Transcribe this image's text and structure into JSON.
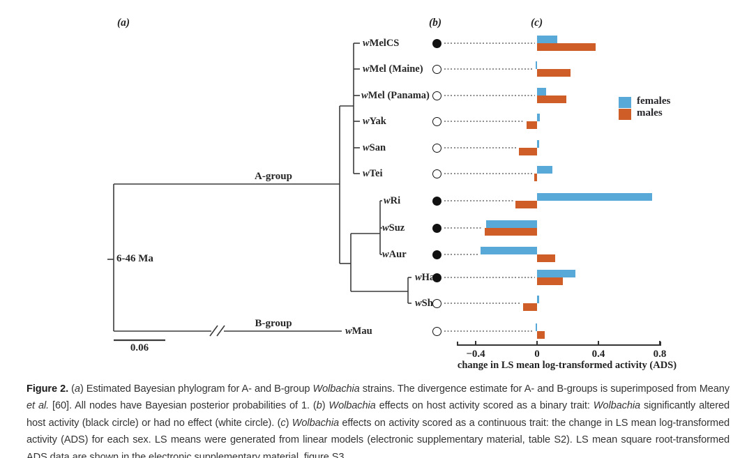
{
  "panels": {
    "a": "(a)",
    "b": "(b)",
    "c": "(c)"
  },
  "tree": {
    "a_group_label": "A-group",
    "b_group_label": "B-group",
    "divergence_label": "6-46 Ma",
    "scale_bar_label": "0.06"
  },
  "legend": {
    "females": "females",
    "males": "males"
  },
  "colors": {
    "female": "#58a9d8",
    "male": "#cf5d27",
    "tree_line": "#3a3a3a",
    "filled_circle": "#111111"
  },
  "axis": {
    "label": "change in LS mean log-transformed activity (ADS)",
    "ticks": [
      "−0.4",
      "0",
      "0.4",
      "0.8"
    ],
    "tick_values": [
      -0.4,
      0,
      0.4,
      0.8
    ]
  },
  "rows": [
    {
      "label": "wMelCS",
      "circle": "filled",
      "females": 0.13,
      "males": 0.38
    },
    {
      "label": "wMel (Maine)",
      "circle": "open",
      "females": -0.01,
      "males": 0.22
    },
    {
      "label": "wMel (Panama)",
      "circle": "open",
      "females": 0.06,
      "males": 0.19
    },
    {
      "label": "wYak",
      "circle": "open",
      "females": 0.02,
      "males": -0.07
    },
    {
      "label": "wSan",
      "circle": "open",
      "females": 0.01,
      "males": -0.12
    },
    {
      "label": "wTei",
      "circle": "open",
      "females": 0.1,
      "males": -0.02
    },
    {
      "label": "wRi",
      "circle": "filled",
      "females": 0.75,
      "males": -0.14
    },
    {
      "label": "wSuz",
      "circle": "filled",
      "females": -0.33,
      "males": -0.34
    },
    {
      "label": "wAur",
      "circle": "filled",
      "females": -0.37,
      "males": 0.12
    },
    {
      "label": "wHa",
      "circle": "filled",
      "females": 0.25,
      "males": 0.17
    },
    {
      "label": "wSh",
      "circle": "open",
      "females": 0.01,
      "males": -0.09
    },
    {
      "label": "wMau",
      "circle": "open",
      "females": -0.01,
      "males": 0.05
    }
  ],
  "chart_data": {
    "type": "bar",
    "orientation": "horizontal",
    "title": "",
    "xlabel": "change in LS mean log-transformed activity (ADS)",
    "ylabel": "",
    "xlim": [
      -0.52,
      0.82
    ],
    "grid": false,
    "legend_position": "right",
    "categories": [
      "wMelCS",
      "wMel (Maine)",
      "wMel (Panama)",
      "wYak",
      "wSan",
      "wTei",
      "wRi",
      "wSuz",
      "wAur",
      "wHa",
      "wSh",
      "wMau"
    ],
    "series": [
      {
        "name": "females",
        "color": "#58a9d8",
        "values": [
          0.13,
          -0.01,
          0.06,
          0.02,
          0.01,
          0.1,
          0.75,
          -0.33,
          -0.37,
          0.25,
          0.01,
          -0.01
        ]
      },
      {
        "name": "males",
        "color": "#cf5d27",
        "values": [
          0.38,
          0.22,
          0.19,
          -0.07,
          -0.12,
          -0.02,
          -0.14,
          -0.34,
          0.12,
          0.17,
          -0.09,
          0.05
        ]
      }
    ],
    "binary_trait": [
      "filled",
      "open",
      "open",
      "open",
      "open",
      "open",
      "filled",
      "filled",
      "filled",
      "filled",
      "open",
      "open"
    ]
  },
  "caption": {
    "segments": [
      {
        "t": "Figure 2. ",
        "b": true
      },
      {
        "t": "("
      },
      {
        "t": "a",
        "i": true
      },
      {
        "t": ") Estimated Bayesian phylogram for A- and B-group "
      },
      {
        "t": "Wolbachia",
        "i": true
      },
      {
        "t": " strains. The divergence estimate for A- and B-groups is superimposed from Meany "
      },
      {
        "t": "et al.",
        "i": true
      },
      {
        "t": " [60]. All nodes have Bayesian posterior probabilities of 1. ("
      },
      {
        "t": "b",
        "i": true
      },
      {
        "t": ") "
      },
      {
        "t": "Wolbachia",
        "i": true
      },
      {
        "t": " effects on host activity scored as a binary trait: "
      },
      {
        "t": "Wolbachia",
        "i": true
      },
      {
        "t": " significantly altered host activity (black circle) or had no effect (white circle). ("
      },
      {
        "t": "c",
        "i": true
      },
      {
        "t": ") "
      },
      {
        "t": "Wolbachia",
        "i": true
      },
      {
        "t": " effects on activity scored as a continuous trait: the change in LS mean log-transformed activity (ADS) for each sex. LS means were generated from linear models (electronic supplementary material, table S2). LS mean square root-transformed ADS data are shown in the electronic supplementary material, figure S3."
      }
    ]
  }
}
